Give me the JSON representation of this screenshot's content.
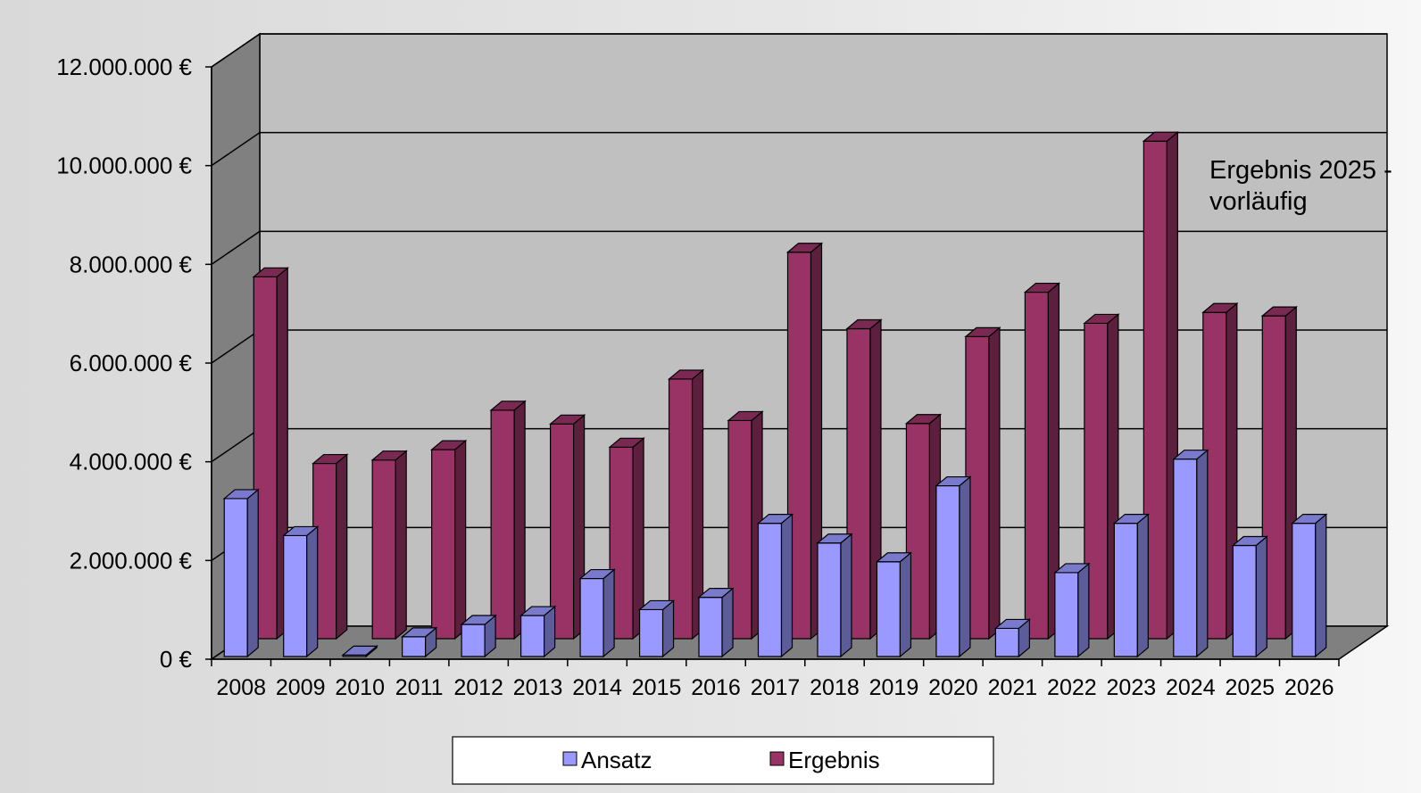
{
  "chart_data": {
    "type": "bar",
    "title": "",
    "xlabel": "",
    "ylabel": "",
    "categories": [
      "2008",
      "2009",
      "2010",
      "2011",
      "2012",
      "2013",
      "2014",
      "2015",
      "2016",
      "2017",
      "2018",
      "2019",
      "2020",
      "2021",
      "2022",
      "2023",
      "2024",
      "2025",
      "2026"
    ],
    "ylim": [
      0,
      12000000
    ],
    "y_ticks": [
      {
        "value": 0,
        "label": "0 €"
      },
      {
        "value": 2000000,
        "label": "2.000.000 €"
      },
      {
        "value": 4000000,
        "label": "4.000.000 €"
      },
      {
        "value": 6000000,
        "label": "6.000.000 €"
      },
      {
        "value": 8000000,
        "label": "8.000.000 €"
      },
      {
        "value": 10000000,
        "label": "10.000.000 €"
      },
      {
        "value": 12000000,
        "label": "12.000.000 €"
      }
    ],
    "grid": true,
    "legend_position": "bottom",
    "series": [
      {
        "name": "Ansatz",
        "color": "#9999ff",
        "values": [
          3200000,
          2450000,
          30000,
          400000,
          650000,
          830000,
          1580000,
          950000,
          1200000,
          2700000,
          2300000,
          1920000,
          3460000,
          570000,
          1700000,
          2700000,
          4000000,
          2250000,
          2700000
        ]
      },
      {
        "name": "Ergebnis",
        "color": "#993366",
        "values": [
          7330000,
          3550000,
          3620000,
          3830000,
          4630000,
          4350000,
          3880000,
          5260000,
          4420000,
          7830000,
          6280000,
          4360000,
          6120000,
          7020000,
          6390000,
          10080000,
          6610000,
          6540000,
          null
        ]
      }
    ],
    "annotations": [
      {
        "text_lines": [
          "Ergebnis 2025 -",
          "vorläufig"
        ]
      }
    ]
  }
}
